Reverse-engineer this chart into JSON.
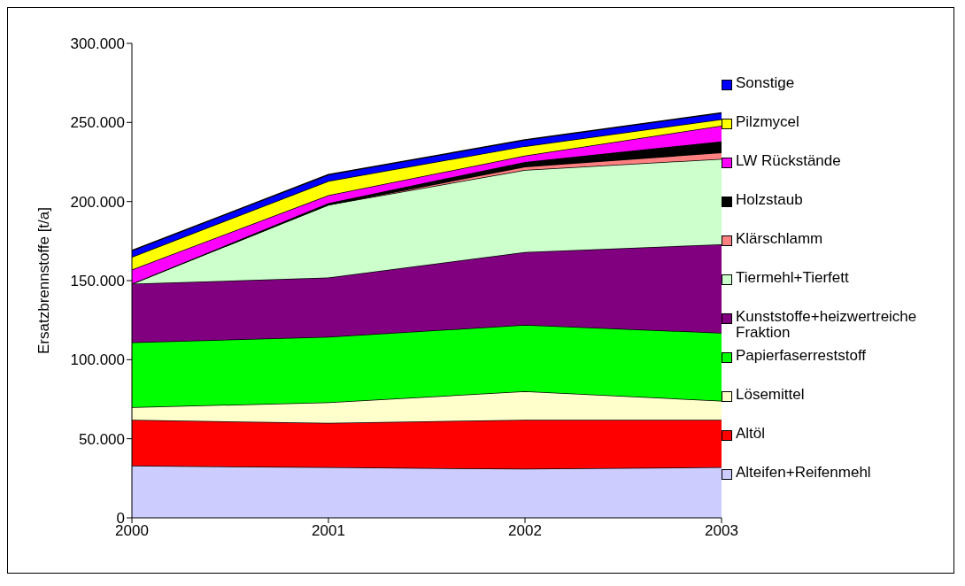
{
  "chart_data": {
    "type": "area",
    "stacked": true,
    "ylabel": "Ersatzbrennstoffe [t/a]",
    "x": [
      2000,
      2001,
      2002,
      2003
    ],
    "xlim": [
      2000,
      2003
    ],
    "xticks": [
      2000,
      2001,
      2002,
      2003
    ],
    "ylim": [
      0,
      300000
    ],
    "yticks": [
      {
        "value": 0,
        "label": "0"
      },
      {
        "value": 50000,
        "label": "50.000"
      },
      {
        "value": 100000,
        "label": "100.000"
      },
      {
        "value": 150000,
        "label": "150.000"
      },
      {
        "value": 200000,
        "label": "200.000"
      },
      {
        "value": 250000,
        "label": "250.000"
      },
      {
        "value": 300000,
        "label": "300.000"
      }
    ],
    "legend": "right",
    "grid": false,
    "series": [
      {
        "name": "Alteifen+Reifenmehl",
        "color": "#ccccff",
        "values": [
          33000,
          32000,
          31000,
          32000
        ]
      },
      {
        "name": "Altöl",
        "color": "#ff0000",
        "values": [
          29000,
          28000,
          31000,
          30000
        ]
      },
      {
        "name": "Lösemittel",
        "color": "#ffffcc",
        "values": [
          8000,
          13000,
          18000,
          12000
        ]
      },
      {
        "name": "Papierfaserreststoff",
        "color": "#00ff00",
        "values": [
          41000,
          41500,
          42000,
          43000
        ]
      },
      {
        "name": "Kunststoffe+heizwertreiche Fraktion",
        "color": "#800080",
        "values": [
          37000,
          37500,
          46000,
          56000
        ]
      },
      {
        "name": "Tiermehl+Tierfett",
        "color": "#ccffcc",
        "values": [
          0,
          46000,
          52000,
          54000
        ]
      },
      {
        "name": "Klärschlamm",
        "color": "#ff8080",
        "values": [
          0,
          0,
          2000,
          4000
        ]
      },
      {
        "name": "Holzstaub",
        "color": "#000000",
        "values": [
          0,
          1000,
          3000,
          7000
        ]
      },
      {
        "name": "LW Rückstände",
        "color": "#ff00ff",
        "values": [
          9000,
          5000,
          4000,
          10000
        ]
      },
      {
        "name": "Pilzmycel",
        "color": "#ffff00",
        "values": [
          8000,
          9000,
          6000,
          4000
        ]
      },
      {
        "name": "Sonstige",
        "color": "#0000ff",
        "values": [
          4000,
          4000,
          4000,
          4000
        ]
      }
    ]
  }
}
